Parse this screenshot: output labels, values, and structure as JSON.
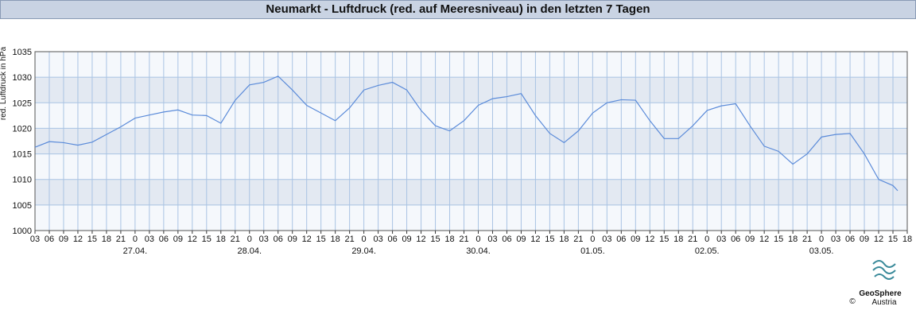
{
  "chart_data": {
    "type": "line",
    "title": "Neumarkt - Luftdruck (red. auf Meeresniveau) in den letzten 7 Tagen",
    "ylabel": "red. Luftdruck in hPa",
    "color": "#5b8bd9",
    "bands": true,
    "grid": true,
    "x": [
      3,
      6,
      9,
      12,
      15,
      18,
      21,
      24,
      27,
      30,
      33,
      36,
      39,
      42,
      45,
      48,
      51,
      54,
      57,
      60,
      63,
      66,
      69,
      72,
      75,
      78,
      81,
      84,
      87,
      90,
      93,
      96,
      99,
      102,
      105,
      108,
      111,
      114,
      117,
      120,
      123,
      126,
      129,
      132,
      135,
      138,
      141,
      144,
      147,
      150,
      153,
      156,
      159,
      162,
      165,
      168,
      171,
      174,
      177,
      180,
      183,
      184
    ],
    "values": [
      1016.3,
      1017.4,
      1017.2,
      1016.7,
      1017.3,
      1018.8,
      1020.3,
      1022.0,
      1022.6,
      1023.2,
      1023.6,
      1022.6,
      1022.5,
      1021.0,
      1025.5,
      1028.5,
      1029.0,
      1030.2,
      1027.5,
      1024.5,
      1023.0,
      1021.5,
      1024.0,
      1027.5,
      1028.4,
      1029.0,
      1027.5,
      1023.5,
      1020.5,
      1019.5,
      1021.5,
      1024.5,
      1025.8,
      1026.2,
      1026.8,
      1022.5,
      1019.0,
      1017.2,
      1019.5,
      1023.0,
      1025.0,
      1025.6,
      1025.5,
      1021.5,
      1018.0,
      1018.0,
      1020.5,
      1023.5,
      1024.4,
      1024.8,
      1020.5,
      1016.5,
      1015.5,
      1013.0,
      1015.0,
      1018.3,
      1018.8,
      1019.0,
      1015.0,
      1010.0,
      1008.8,
      1007.8
    ],
    "xlim": [
      3,
      186
    ],
    "ylim": [
      1000,
      1035
    ],
    "yticks": [
      1000,
      1005,
      1010,
      1015,
      1020,
      1025,
      1030,
      1035
    ],
    "xticks": [
      {
        "value": 3,
        "label": "03"
      },
      {
        "value": 6,
        "label": "06"
      },
      {
        "value": 9,
        "label": "09"
      },
      {
        "value": 12,
        "label": "12"
      },
      {
        "value": 15,
        "label": "15"
      },
      {
        "value": 18,
        "label": "18"
      },
      {
        "value": 21,
        "label": "21"
      },
      {
        "value": 24,
        "label": "0"
      },
      {
        "value": 27,
        "label": "03"
      },
      {
        "value": 30,
        "label": "06"
      },
      {
        "value": 33,
        "label": "09"
      },
      {
        "value": 36,
        "label": "12"
      },
      {
        "value": 39,
        "label": "15"
      },
      {
        "value": 42,
        "label": "18"
      },
      {
        "value": 45,
        "label": "21"
      },
      {
        "value": 48,
        "label": "0"
      },
      {
        "value": 51,
        "label": "03"
      },
      {
        "value": 54,
        "label": "06"
      },
      {
        "value": 57,
        "label": "09"
      },
      {
        "value": 60,
        "label": "12"
      },
      {
        "value": 63,
        "label": "15"
      },
      {
        "value": 66,
        "label": "18"
      },
      {
        "value": 69,
        "label": "21"
      },
      {
        "value": 72,
        "label": "0"
      },
      {
        "value": 75,
        "label": "03"
      },
      {
        "value": 78,
        "label": "06"
      },
      {
        "value": 81,
        "label": "09"
      },
      {
        "value": 84,
        "label": "12"
      },
      {
        "value": 87,
        "label": "15"
      },
      {
        "value": 90,
        "label": "18"
      },
      {
        "value": 93,
        "label": "21"
      },
      {
        "value": 96,
        "label": "0"
      },
      {
        "value": 99,
        "label": "03"
      },
      {
        "value": 102,
        "label": "06"
      },
      {
        "value": 105,
        "label": "09"
      },
      {
        "value": 108,
        "label": "12"
      },
      {
        "value": 111,
        "label": "15"
      },
      {
        "value": 114,
        "label": "18"
      },
      {
        "value": 117,
        "label": "21"
      },
      {
        "value": 120,
        "label": "0"
      },
      {
        "value": 123,
        "label": "03"
      },
      {
        "value": 126,
        "label": "06"
      },
      {
        "value": 129,
        "label": "09"
      },
      {
        "value": 132,
        "label": "12"
      },
      {
        "value": 135,
        "label": "15"
      },
      {
        "value": 138,
        "label": "18"
      },
      {
        "value": 141,
        "label": "21"
      },
      {
        "value": 144,
        "label": "0"
      },
      {
        "value": 147,
        "label": "03"
      },
      {
        "value": 150,
        "label": "06"
      },
      {
        "value": 153,
        "label": "09"
      },
      {
        "value": 156,
        "label": "12"
      },
      {
        "value": 159,
        "label": "15"
      },
      {
        "value": 162,
        "label": "18"
      },
      {
        "value": 165,
        "label": "21"
      },
      {
        "value": 168,
        "label": "0"
      },
      {
        "value": 171,
        "label": "03"
      },
      {
        "value": 174,
        "label": "06"
      },
      {
        "value": 177,
        "label": "09"
      },
      {
        "value": 180,
        "label": "12"
      },
      {
        "value": 183,
        "label": "15"
      },
      {
        "value": 186,
        "label": "18"
      }
    ],
    "date_labels": [
      {
        "value": 24,
        "label": "27.04."
      },
      {
        "value": 48,
        "label": "28.04."
      },
      {
        "value": 72,
        "label": "29.04."
      },
      {
        "value": 96,
        "label": "30.04."
      },
      {
        "value": 120,
        "label": "01.05."
      },
      {
        "value": 144,
        "label": "02.05."
      },
      {
        "value": 168,
        "label": "03.05."
      }
    ],
    "logo": {
      "name": "GeoSphere",
      "sub": "Austria",
      "copyright": "©"
    }
  }
}
